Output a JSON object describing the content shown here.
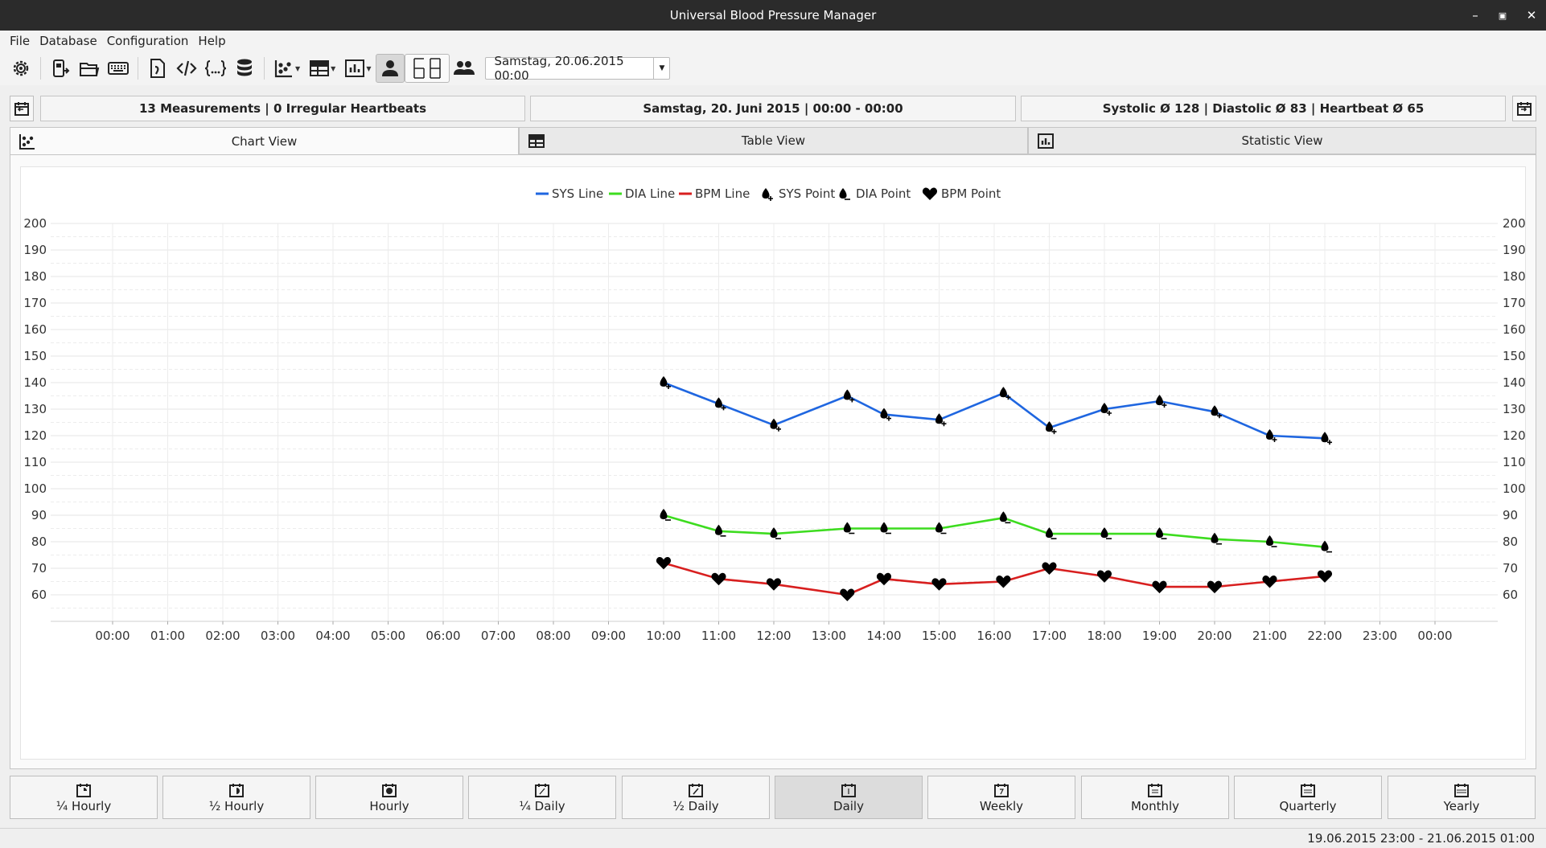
{
  "window": {
    "title": "Universal Blood Pressure Manager"
  },
  "menu": [
    "File",
    "Database",
    "Configuration",
    "Help"
  ],
  "toolbar": {
    "date_value": "Samstag, 20.06.2015 00:00"
  },
  "info": {
    "left": "13 Measurements  |  0 Irregular Heartbeats",
    "center": "Samstag, 20. Juni 2015  |  00:00 - 00:00",
    "right": "Systolic Ø 128  |  Diastolic Ø 83  |  Heartbeat Ø 65"
  },
  "tabs": [
    "Chart View",
    "Table View",
    "Statistic View"
  ],
  "groupings": [
    "¼ Hourly",
    "½ Hourly",
    "Hourly",
    "¼ Daily",
    "½ Daily",
    "Daily",
    "Weekly",
    "Monthly",
    "Quarterly",
    "Yearly"
  ],
  "status": "19.06.2015 23:00 - 21.06.2015 01:00",
  "chart_data": {
    "type": "line",
    "legend": [
      "SYS Line",
      "DIA Line",
      "BPM Line",
      "SYS Point",
      "DIA Point",
      "BPM Point"
    ],
    "legend_position": "top",
    "grid": true,
    "ylim": [
      50,
      200
    ],
    "yticks": [
      60,
      70,
      80,
      90,
      100,
      110,
      120,
      130,
      140,
      150,
      160,
      170,
      180,
      190,
      200
    ],
    "xticks": [
      "00:00",
      "01:00",
      "02:00",
      "03:00",
      "04:00",
      "05:00",
      "06:00",
      "07:00",
      "08:00",
      "09:00",
      "10:00",
      "11:00",
      "12:00",
      "13:00",
      "14:00",
      "15:00",
      "16:00",
      "17:00",
      "18:00",
      "19:00",
      "20:00",
      "21:00",
      "22:00",
      "23:00",
      "00:00"
    ],
    "colors": {
      "sys": "#1f66e0",
      "dia": "#3ddc1f",
      "bpm": "#d81f1f"
    },
    "x": [
      "10:00",
      "11:00",
      "12:00",
      "13:20",
      "14:00",
      "15:00",
      "16:10",
      "17:00",
      "18:00",
      "19:00",
      "20:00",
      "21:00",
      "22:00"
    ],
    "series": [
      {
        "name": "SYS",
        "values": [
          140,
          132,
          124,
          135,
          128,
          126,
          136,
          123,
          130,
          133,
          129,
          120,
          119
        ]
      },
      {
        "name": "DIA",
        "values": [
          90,
          84,
          83,
          85,
          85,
          85,
          89,
          83,
          83,
          83,
          81,
          80,
          78
        ]
      },
      {
        "name": "BPM",
        "values": [
          72,
          66,
          64,
          60,
          66,
          64,
          65,
          70,
          67,
          63,
          63,
          65,
          67
        ]
      }
    ]
  }
}
